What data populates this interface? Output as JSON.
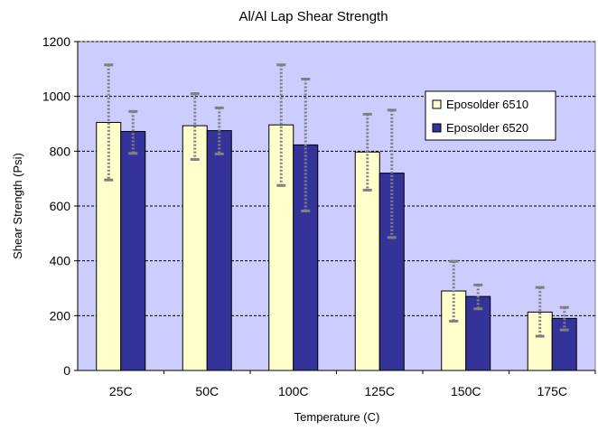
{
  "chart_data": {
    "type": "bar",
    "title": "Al/Al Lap Shear Strength",
    "xlabel": "Temperature (C)",
    "ylabel": "Shear Strength (Psi)",
    "categories": [
      "25C",
      "50C",
      "100C",
      "125C",
      "150C",
      "175C"
    ],
    "ylim": [
      0,
      1200
    ],
    "yticks": [
      "0",
      "200",
      "400",
      "600",
      "800",
      "1000",
      "1200"
    ],
    "grid": true,
    "legend_position": "right",
    "series": [
      {
        "name": "Eposolder 6510",
        "color": "#ffffcc",
        "values": [
          905,
          893,
          896,
          797,
          290,
          213
        ],
        "error_low": [
          695,
          770,
          675,
          658,
          180,
          125
        ],
        "error_high": [
          1115,
          1010,
          1115,
          935,
          398,
          303
        ]
      },
      {
        "name": "Eposolder 6520",
        "color": "#333399",
        "values": [
          872,
          875,
          823,
          720,
          270,
          190
        ],
        "error_low": [
          792,
          790,
          582,
          485,
          225,
          148
        ],
        "error_high": [
          945,
          958,
          1063,
          950,
          312,
          230
        ]
      }
    ],
    "plot_background": "#ccccff"
  }
}
